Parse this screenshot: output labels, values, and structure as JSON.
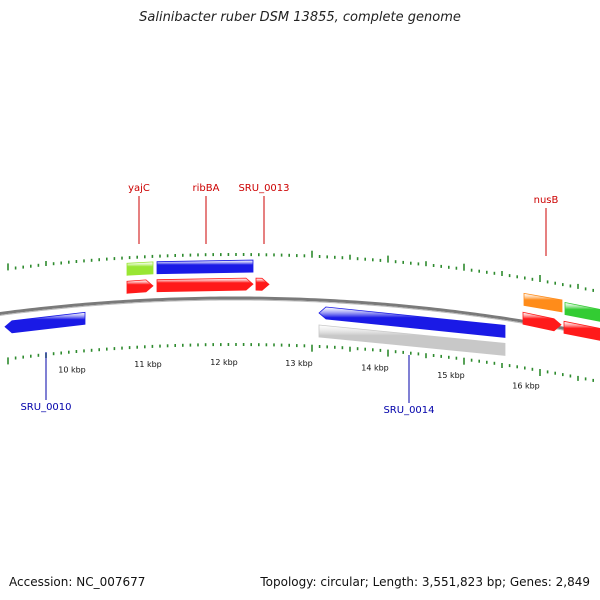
{
  "title": "Salinibacter ruber DSM 13855, complete genome",
  "footer": {
    "accession": "Accession: NC_007677",
    "summary": "Topology: circular; Length: 3,551,823 bp; Genes: 2,849"
  },
  "colors": {
    "backbone": "#7a7a7a",
    "tick": "#2e8b2e",
    "label_top": "#cc0000",
    "label_bottom": "#0000aa",
    "blue": "#1a1ae6",
    "red": "#ff1a1a",
    "lime": "#99e633",
    "orange": "#ff8c1a",
    "green": "#33cc33",
    "gray": "#c8c8c8"
  },
  "scale_labels": [
    "10 kbp",
    "11 kbp",
    "12 kbp",
    "13 kbp",
    "14 kbp",
    "15 kbp",
    "16 kbp"
  ],
  "labels": [
    {
      "text": "yajC",
      "side": "top"
    },
    {
      "text": "ribBA",
      "side": "top"
    },
    {
      "text": "SRU_0013",
      "side": "top"
    },
    {
      "text": "nusB",
      "side": "top"
    },
    {
      "text": "SRU_0010",
      "side": "bottom"
    },
    {
      "text": "SRU_0014",
      "side": "bottom"
    }
  ]
}
